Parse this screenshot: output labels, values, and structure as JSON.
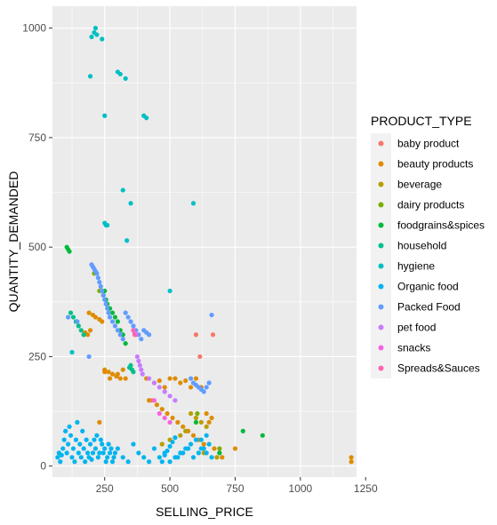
{
  "chart_data": {
    "type": "scatter",
    "xlabel": "SELLING_PRICE",
    "ylabel": "QUANTITY_DEMANDED",
    "xlim": [
      50,
      1215
    ],
    "ylim": [
      -25,
      1050
    ],
    "x_ticks": [
      250,
      500,
      750,
      1000,
      1250
    ],
    "y_ticks": [
      0,
      250,
      500,
      750,
      1000
    ],
    "grid": true,
    "background": "#ebebeb",
    "legend": {
      "title": "PRODUCT_TYPE",
      "placement": "right"
    },
    "series": [
      {
        "name": "baby product",
        "color": "#F8766D",
        "x": [
          600,
          665,
          615,
          430
        ],
        "y": [
          300,
          300,
          250,
          150
        ]
      },
      {
        "name": "beauty products",
        "color": "#DE8C00",
        "x": [
          190,
          205,
          215,
          230,
          240,
          170,
          175,
          185,
          195,
          250,
          265,
          280,
          295,
          310,
          320,
          330,
          300,
          270,
          250,
          410,
          440,
          460,
          480,
          500,
          520,
          540,
          560,
          580,
          600,
          620,
          640,
          660,
          420,
          450,
          470,
          490,
          510,
          530,
          550,
          570,
          590,
          610,
          630,
          650,
          670,
          690,
          230,
          1195,
          1195,
          750,
          700
        ],
        "y": [
          350,
          345,
          340,
          335,
          330,
          300,
          305,
          300,
          310,
          220,
          215,
          210,
          205,
          200,
          220,
          200,
          210,
          200,
          215,
          200,
          190,
          195,
          180,
          200,
          200,
          190,
          195,
          180,
          200,
          180,
          120,
          110,
          150,
          140,
          130,
          120,
          110,
          100,
          90,
          80,
          70,
          60,
          50,
          100,
          40,
          30,
          100,
          20,
          10,
          40,
          20
        ]
      },
      {
        "name": "beverage",
        "color": "#B79F00",
        "x": [
          580,
          600,
          620,
          640,
          560,
          540,
          500,
          470,
          680,
          630
        ],
        "y": [
          120,
          110,
          100,
          90,
          80,
          70,
          60,
          50,
          20,
          30
        ]
      },
      {
        "name": "dairy products",
        "color": "#7CAE00",
        "x": [
          210,
          230,
          605,
          690
        ],
        "y": [
          440,
          400,
          120,
          40
        ]
      },
      {
        "name": "foodgrains&spices",
        "color": "#00BA38",
        "x": [
          105,
          110,
          115,
          250,
          245,
          255,
          260,
          270,
          280,
          290,
          300,
          310,
          320,
          330,
          600,
          690,
          780,
          855
        ],
        "y": [
          500,
          495,
          490,
          400,
          390,
          380,
          370,
          360,
          350,
          340,
          330,
          310,
          300,
          280,
          100,
          30,
          80,
          70
        ]
      },
      {
        "name": "household",
        "color": "#00C08B",
        "x": [
          350,
          345,
          355,
          360,
          120,
          130,
          140,
          150,
          160,
          170
        ],
        "y": [
          230,
          225,
          220,
          215,
          350,
          340,
          330,
          320,
          310,
          300
        ]
      },
      {
        "name": "hygiene",
        "color": "#00BFC4",
        "x": [
          200,
          210,
          215,
          220,
          240,
          195,
          300,
          310,
          330,
          250,
          400,
          410,
          320,
          350,
          590,
          250,
          255,
          260,
          335,
          500,
          125
        ],
        "y": [
          980,
          990,
          1000,
          985,
          975,
          890,
          900,
          895,
          885,
          800,
          800,
          795,
          630,
          600,
          600,
          555,
          550,
          550,
          515,
          400,
          260
        ]
      },
      {
        "name": "Organic food",
        "color": "#00B4F0",
        "x": [
          70,
          75,
          80,
          85,
          90,
          95,
          100,
          105,
          110,
          115,
          120,
          125,
          130,
          135,
          140,
          145,
          150,
          155,
          160,
          165,
          170,
          175,
          180,
          185,
          190,
          195,
          200,
          205,
          210,
          215,
          220,
          225,
          230,
          235,
          240,
          245,
          250,
          255,
          260,
          265,
          270,
          275,
          280,
          285,
          290,
          300,
          320,
          340,
          360,
          380,
          400,
          420,
          440,
          460,
          480,
          500,
          520,
          540,
          560,
          580,
          600,
          620,
          640,
          660,
          470,
          480,
          490,
          500,
          510,
          520,
          530,
          550,
          570,
          590,
          610,
          630,
          650,
          620,
          640
        ],
        "y": [
          20,
          30,
          10,
          25,
          40,
          60,
          80,
          30,
          50,
          90,
          70,
          20,
          40,
          10,
          60,
          100,
          30,
          50,
          20,
          80,
          40,
          10,
          60,
          30,
          20,
          50,
          15,
          30,
          60,
          40,
          70,
          20,
          30,
          60,
          50,
          30,
          40,
          10,
          20,
          50,
          30,
          40,
          10,
          20,
          30,
          40,
          20,
          10,
          50,
          30,
          20,
          10,
          40,
          20,
          30,
          10,
          20,
          30,
          40,
          50,
          60,
          40,
          30,
          20,
          10,
          25,
          35,
          45,
          55,
          65,
          20,
          30,
          40,
          20,
          30,
          40,
          50,
          60,
          70
        ]
      },
      {
        "name": "Packed Food",
        "color": "#619CFF",
        "x": [
          200,
          205,
          210,
          215,
          220,
          225,
          230,
          235,
          240,
          245,
          250,
          255,
          260,
          265,
          270,
          280,
          290,
          300,
          310,
          320,
          330,
          340,
          350,
          360,
          370,
          380,
          390,
          400,
          410,
          420,
          580,
          590,
          600,
          610,
          620,
          630,
          640,
          650,
          660,
          110,
          145,
          190
        ],
        "y": [
          460,
          455,
          450,
          445,
          440,
          430,
          420,
          410,
          400,
          390,
          380,
          370,
          360,
          350,
          340,
          330,
          320,
          310,
          300,
          290,
          350,
          340,
          330,
          320,
          310,
          300,
          290,
          310,
          305,
          300,
          200,
          190,
          185,
          180,
          175,
          170,
          180,
          190,
          345,
          340,
          330,
          250
        ]
      },
      {
        "name": "pet food",
        "color": "#C77CFF",
        "x": [
          360,
          365,
          370,
          375,
          380,
          385,
          390,
          395,
          420,
          440,
          460,
          480,
          500,
          520
        ],
        "y": [
          310,
          305,
          300,
          250,
          240,
          230,
          220,
          210,
          200,
          190,
          180,
          170,
          160,
          150
        ]
      },
      {
        "name": "snacks",
        "color": "#F564E3",
        "x": [
          440,
          460,
          480,
          500
        ],
        "y": [
          150,
          120,
          110,
          100
        ]
      },
      {
        "name": "Spreads&Sauces",
        "color": "#FF64B0",
        "x": [
          360,
          365
        ],
        "y": [
          310,
          300
        ]
      }
    ]
  }
}
